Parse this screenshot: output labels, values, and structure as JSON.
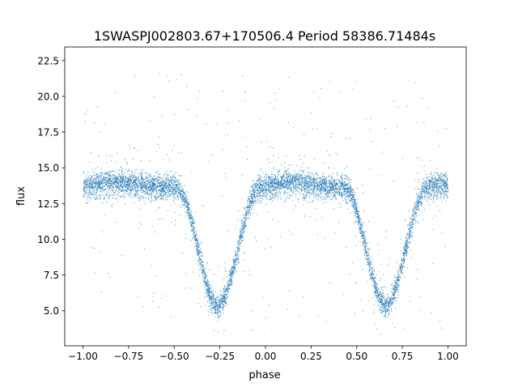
{
  "chart_data": {
    "type": "scatter",
    "title": "1SWASPJ002803.67+170506.4 Period 58386.71484s",
    "xlabel": "phase",
    "ylabel": "flux",
    "xlim": [
      -1.1,
      1.1
    ],
    "ylim": [
      2.55,
      23.45
    ],
    "x_ticks": [
      -1.0,
      -0.75,
      -0.5,
      -0.25,
      0.0,
      0.25,
      0.5,
      0.75,
      1.0
    ],
    "x_tick_labels": [
      "−1.00",
      "−0.75",
      "−0.50",
      "−0.25",
      "0.00",
      "0.25",
      "0.50",
      "0.75",
      "1.00"
    ],
    "y_ticks": [
      5.0,
      7.5,
      10.0,
      12.5,
      15.0,
      17.5,
      20.0,
      22.5
    ],
    "y_tick_labels": [
      "5.0",
      "7.5",
      "10.0",
      "12.5",
      "15.0",
      "17.5",
      "20.0",
      "22.5"
    ],
    "grid": false,
    "legend": "none",
    "marker_color": "#1f77b4",
    "series": [
      {
        "x": [
          -1.0,
          -0.98,
          -0.96,
          -0.94,
          -0.92,
          -0.9,
          -0.88,
          -0.86,
          -0.84,
          -0.82,
          -0.8,
          -0.78,
          -0.76,
          -0.74,
          -0.72,
          -0.7,
          -0.68,
          -0.66,
          -0.64,
          -0.62,
          -0.6,
          -0.58,
          -0.56,
          -0.54,
          -0.52,
          -0.5,
          -0.48,
          -0.46,
          -0.44,
          -0.42,
          -0.4,
          -0.38,
          -0.36,
          -0.34,
          -0.32,
          -0.3,
          -0.28,
          -0.26,
          -0.24,
          -0.22,
          -0.2,
          -0.18,
          -0.16,
          -0.14,
          -0.12,
          -0.1,
          -0.08,
          -0.06,
          -0.04,
          -0.02,
          0.0,
          0.02,
          0.04,
          0.06,
          0.08,
          0.1,
          0.12,
          0.14,
          0.16,
          0.18,
          0.2,
          0.22,
          0.24,
          0.26,
          0.28,
          0.3,
          0.32,
          0.34,
          0.36,
          0.38,
          0.4,
          0.42,
          0.44,
          0.46,
          0.48,
          0.5,
          0.52,
          0.54,
          0.56,
          0.58,
          0.6,
          0.62,
          0.64,
          0.66,
          0.68,
          0.7,
          0.72,
          0.74,
          0.76,
          0.78,
          0.8,
          0.82,
          0.84,
          0.86,
          0.88,
          0.9,
          0.92,
          0.94,
          0.96,
          0.98,
          1.0
        ],
        "y": [
          13.8,
          13.8,
          13.8,
          13.9,
          13.9,
          13.9,
          13.9,
          14.0,
          14.0,
          14.0,
          14.0,
          14.0,
          13.9,
          13.9,
          13.9,
          13.8,
          13.8,
          13.8,
          13.8,
          13.8,
          13.7,
          13.7,
          13.7,
          13.7,
          13.7,
          13.7,
          13.6,
          13.3,
          12.8,
          12.0,
          11.0,
          9.9,
          8.8,
          7.7,
          6.8,
          6.0,
          5.5,
          5.3,
          5.5,
          6.0,
          6.8,
          7.7,
          8.8,
          9.9,
          11.0,
          12.0,
          12.8,
          13.3,
          13.6,
          13.7,
          13.8,
          13.8,
          13.9,
          13.9,
          13.9,
          14.0,
          14.0,
          14.0,
          14.0,
          14.0,
          13.9,
          13.9,
          13.9,
          13.8,
          13.8,
          13.8,
          13.8,
          13.7,
          13.7,
          13.7,
          13.7,
          13.7,
          13.6,
          13.3,
          12.8,
          12.0,
          11.0,
          9.9,
          8.8,
          7.7,
          6.8,
          6.0,
          5.5,
          5.3,
          5.5,
          6.0,
          6.8,
          7.7,
          8.8,
          9.9,
          11.0,
          12.0,
          12.8,
          13.3,
          13.6,
          13.7,
          13.7,
          13.8,
          13.8,
          13.8,
          13.8
        ]
      }
    ]
  }
}
